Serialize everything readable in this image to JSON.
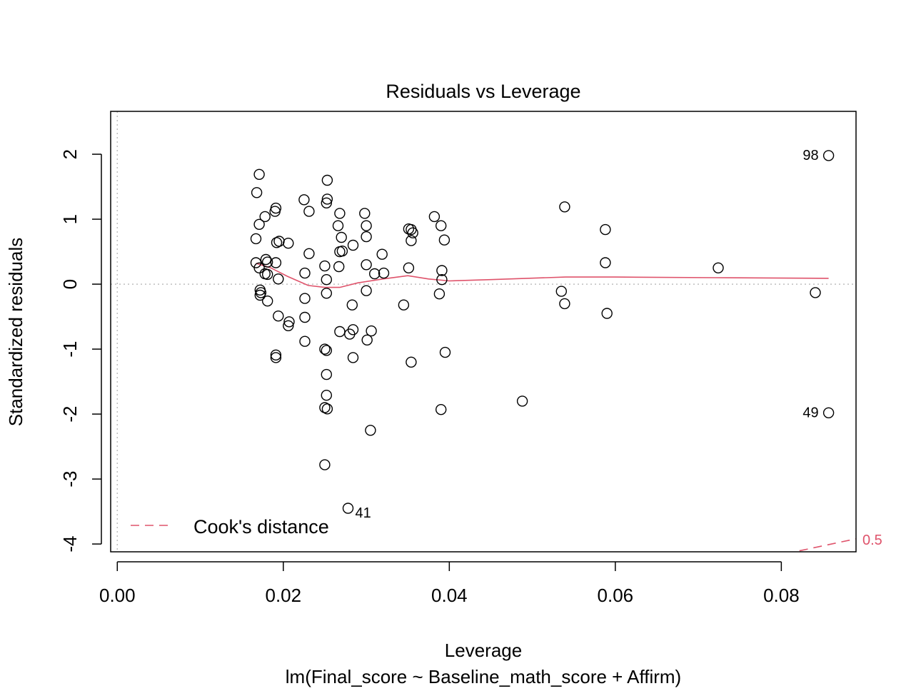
{
  "chart_data": {
    "type": "scatter",
    "title": "Residuals vs Leverage",
    "xlabel": "Leverage",
    "sublabel": "lm(Final_score ~ Baseline_math_score + Affirm)",
    "ylabel": "Standardized residuals",
    "xlim": [
      -0.0008,
      0.089
    ],
    "ylim": [
      -4.12,
      2.66
    ],
    "x_ticks": [
      0.0,
      0.02,
      0.04,
      0.06,
      0.08
    ],
    "x_tick_labels": [
      "0.00",
      "0.02",
      "0.04",
      "0.06",
      "0.08"
    ],
    "y_ticks": [
      2,
      1,
      0,
      -1,
      -2,
      -3,
      -4
    ],
    "y_tick_labels": [
      "2",
      "1",
      "0",
      "-1",
      "-2",
      "-3",
      "-4"
    ],
    "reference_lines": {
      "h": 0,
      "v": 0,
      "style": "dotted",
      "color": "#BEBEBE"
    },
    "points": [
      {
        "x": 0.0171,
        "y": 1.69
      },
      {
        "x": 0.0168,
        "y": 1.41
      },
      {
        "x": 0.0178,
        "y": 1.04
      },
      {
        "x": 0.0191,
        "y": 1.17
      },
      {
        "x": 0.019,
        "y": 1.12
      },
      {
        "x": 0.0171,
        "y": 0.92
      },
      {
        "x": 0.0167,
        "y": 0.7
      },
      {
        "x": 0.0192,
        "y": 0.64
      },
      {
        "x": 0.0195,
        "y": 0.66
      },
      {
        "x": 0.0206,
        "y": 0.63
      },
      {
        "x": 0.0167,
        "y": 0.33
      },
      {
        "x": 0.0171,
        "y": 0.25
      },
      {
        "x": 0.0179,
        "y": 0.38
      },
      {
        "x": 0.0181,
        "y": 0.34
      },
      {
        "x": 0.0191,
        "y": 0.33
      },
      {
        "x": 0.0178,
        "y": 0.16
      },
      {
        "x": 0.0181,
        "y": 0.15
      },
      {
        "x": 0.0194,
        "y": 0.08
      },
      {
        "x": 0.0172,
        "y": -0.09
      },
      {
        "x": 0.0173,
        "y": -0.13
      },
      {
        "x": 0.0172,
        "y": -0.17
      },
      {
        "x": 0.0181,
        "y": -0.26
      },
      {
        "x": 0.0194,
        "y": -0.49
      },
      {
        "x": 0.0207,
        "y": -0.58
      },
      {
        "x": 0.0206,
        "y": -0.64
      },
      {
        "x": 0.0191,
        "y": -1.09
      },
      {
        "x": 0.0191,
        "y": -1.13
      },
      {
        "x": 0.0225,
        "y": 1.3
      },
      {
        "x": 0.0231,
        "y": 1.12
      },
      {
        "x": 0.0253,
        "y": 1.6
      },
      {
        "x": 0.0253,
        "y": 1.31
      },
      {
        "x": 0.0252,
        "y": 1.25
      },
      {
        "x": 0.0268,
        "y": 1.09
      },
      {
        "x": 0.0266,
        "y": 0.9
      },
      {
        "x": 0.027,
        "y": 0.72
      },
      {
        "x": 0.0268,
        "y": 0.5
      },
      {
        "x": 0.0271,
        "y": 0.51
      },
      {
        "x": 0.0284,
        "y": 0.6
      },
      {
        "x": 0.0231,
        "y": 0.47
      },
      {
        "x": 0.025,
        "y": 0.28
      },
      {
        "x": 0.0267,
        "y": 0.27
      },
      {
        "x": 0.0226,
        "y": 0.17
      },
      {
        "x": 0.0252,
        "y": 0.07
      },
      {
        "x": 0.0226,
        "y": -0.22
      },
      {
        "x": 0.0252,
        "y": -0.14
      },
      {
        "x": 0.0226,
        "y": -0.51
      },
      {
        "x": 0.0283,
        "y": -0.32
      },
      {
        "x": 0.0268,
        "y": -0.73
      },
      {
        "x": 0.0284,
        "y": -0.7
      },
      {
        "x": 0.028,
        "y": -0.77
      },
      {
        "x": 0.0226,
        "y": -0.88
      },
      {
        "x": 0.025,
        "y": -1.0
      },
      {
        "x": 0.0252,
        "y": -1.02
      },
      {
        "x": 0.0284,
        "y": -1.13
      },
      {
        "x": 0.0252,
        "y": -1.39
      },
      {
        "x": 0.0252,
        "y": -1.71
      },
      {
        "x": 0.025,
        "y": -1.9
      },
      {
        "x": 0.0253,
        "y": -1.92
      },
      {
        "x": 0.025,
        "y": -2.78
      },
      {
        "x": 0.0278,
        "y": -3.45,
        "label": "41"
      },
      {
        "x": 0.0298,
        "y": 1.09
      },
      {
        "x": 0.03,
        "y": 0.9
      },
      {
        "x": 0.03,
        "y": 0.73
      },
      {
        "x": 0.0319,
        "y": 0.46
      },
      {
        "x": 0.03,
        "y": 0.3
      },
      {
        "x": 0.031,
        "y": 0.16
      },
      {
        "x": 0.0321,
        "y": 0.17
      },
      {
        "x": 0.03,
        "y": -0.1
      },
      {
        "x": 0.0306,
        "y": -0.72
      },
      {
        "x": 0.0301,
        "y": -0.86
      },
      {
        "x": 0.0305,
        "y": -2.25
      },
      {
        "x": 0.0351,
        "y": 0.85
      },
      {
        "x": 0.0354,
        "y": 0.84
      },
      {
        "x": 0.0356,
        "y": 0.79
      },
      {
        "x": 0.0354,
        "y": 0.67
      },
      {
        "x": 0.0382,
        "y": 1.04
      },
      {
        "x": 0.039,
        "y": 0.9
      },
      {
        "x": 0.0394,
        "y": 0.68
      },
      {
        "x": 0.0351,
        "y": 0.25
      },
      {
        "x": 0.0391,
        "y": 0.21
      },
      {
        "x": 0.0391,
        "y": 0.07
      },
      {
        "x": 0.0388,
        "y": -0.15
      },
      {
        "x": 0.0345,
        "y": -0.32
      },
      {
        "x": 0.0395,
        "y": -1.05
      },
      {
        "x": 0.0354,
        "y": -1.2
      },
      {
        "x": 0.039,
        "y": -1.93
      },
      {
        "x": 0.0488,
        "y": -1.8
      },
      {
        "x": 0.0539,
        "y": 1.19
      },
      {
        "x": 0.0535,
        "y": -0.11
      },
      {
        "x": 0.0539,
        "y": -0.3
      },
      {
        "x": 0.0588,
        "y": 0.84
      },
      {
        "x": 0.0588,
        "y": 0.33
      },
      {
        "x": 0.059,
        "y": -0.45
      },
      {
        "x": 0.0724,
        "y": 0.25
      },
      {
        "x": 0.0857,
        "y": 1.98,
        "label": "98"
      },
      {
        "x": 0.0841,
        "y": -0.13
      },
      {
        "x": 0.0857,
        "y": -1.98,
        "label": "49"
      }
    ],
    "smooth_line": {
      "color": "#DF536B",
      "points": [
        {
          "x": 0.0167,
          "y": 0.32
        },
        {
          "x": 0.0185,
          "y": 0.25
        },
        {
          "x": 0.0205,
          "y": 0.12
        },
        {
          "x": 0.023,
          "y": -0.02
        },
        {
          "x": 0.025,
          "y": -0.05
        },
        {
          "x": 0.0268,
          "y": -0.05
        },
        {
          "x": 0.029,
          "y": 0.02
        },
        {
          "x": 0.032,
          "y": 0.08
        },
        {
          "x": 0.035,
          "y": 0.13
        },
        {
          "x": 0.0375,
          "y": 0.08
        },
        {
          "x": 0.04,
          "y": 0.05
        },
        {
          "x": 0.045,
          "y": 0.07
        },
        {
          "x": 0.054,
          "y": 0.11
        },
        {
          "x": 0.06,
          "y": 0.11
        },
        {
          "x": 0.072,
          "y": 0.1
        },
        {
          "x": 0.0857,
          "y": 0.09
        }
      ]
    },
    "cooks_distance": {
      "label": "0.5",
      "color": "#DF536B",
      "points": [
        {
          "x": 0.0805,
          "y": -4.15
        },
        {
          "x": 0.089,
          "y": -3.92
        }
      ]
    },
    "legend": {
      "position": "bottom-left",
      "entries": [
        {
          "label": "Cook's distance",
          "line": "dashed",
          "color": "#DF536B"
        }
      ]
    }
  }
}
